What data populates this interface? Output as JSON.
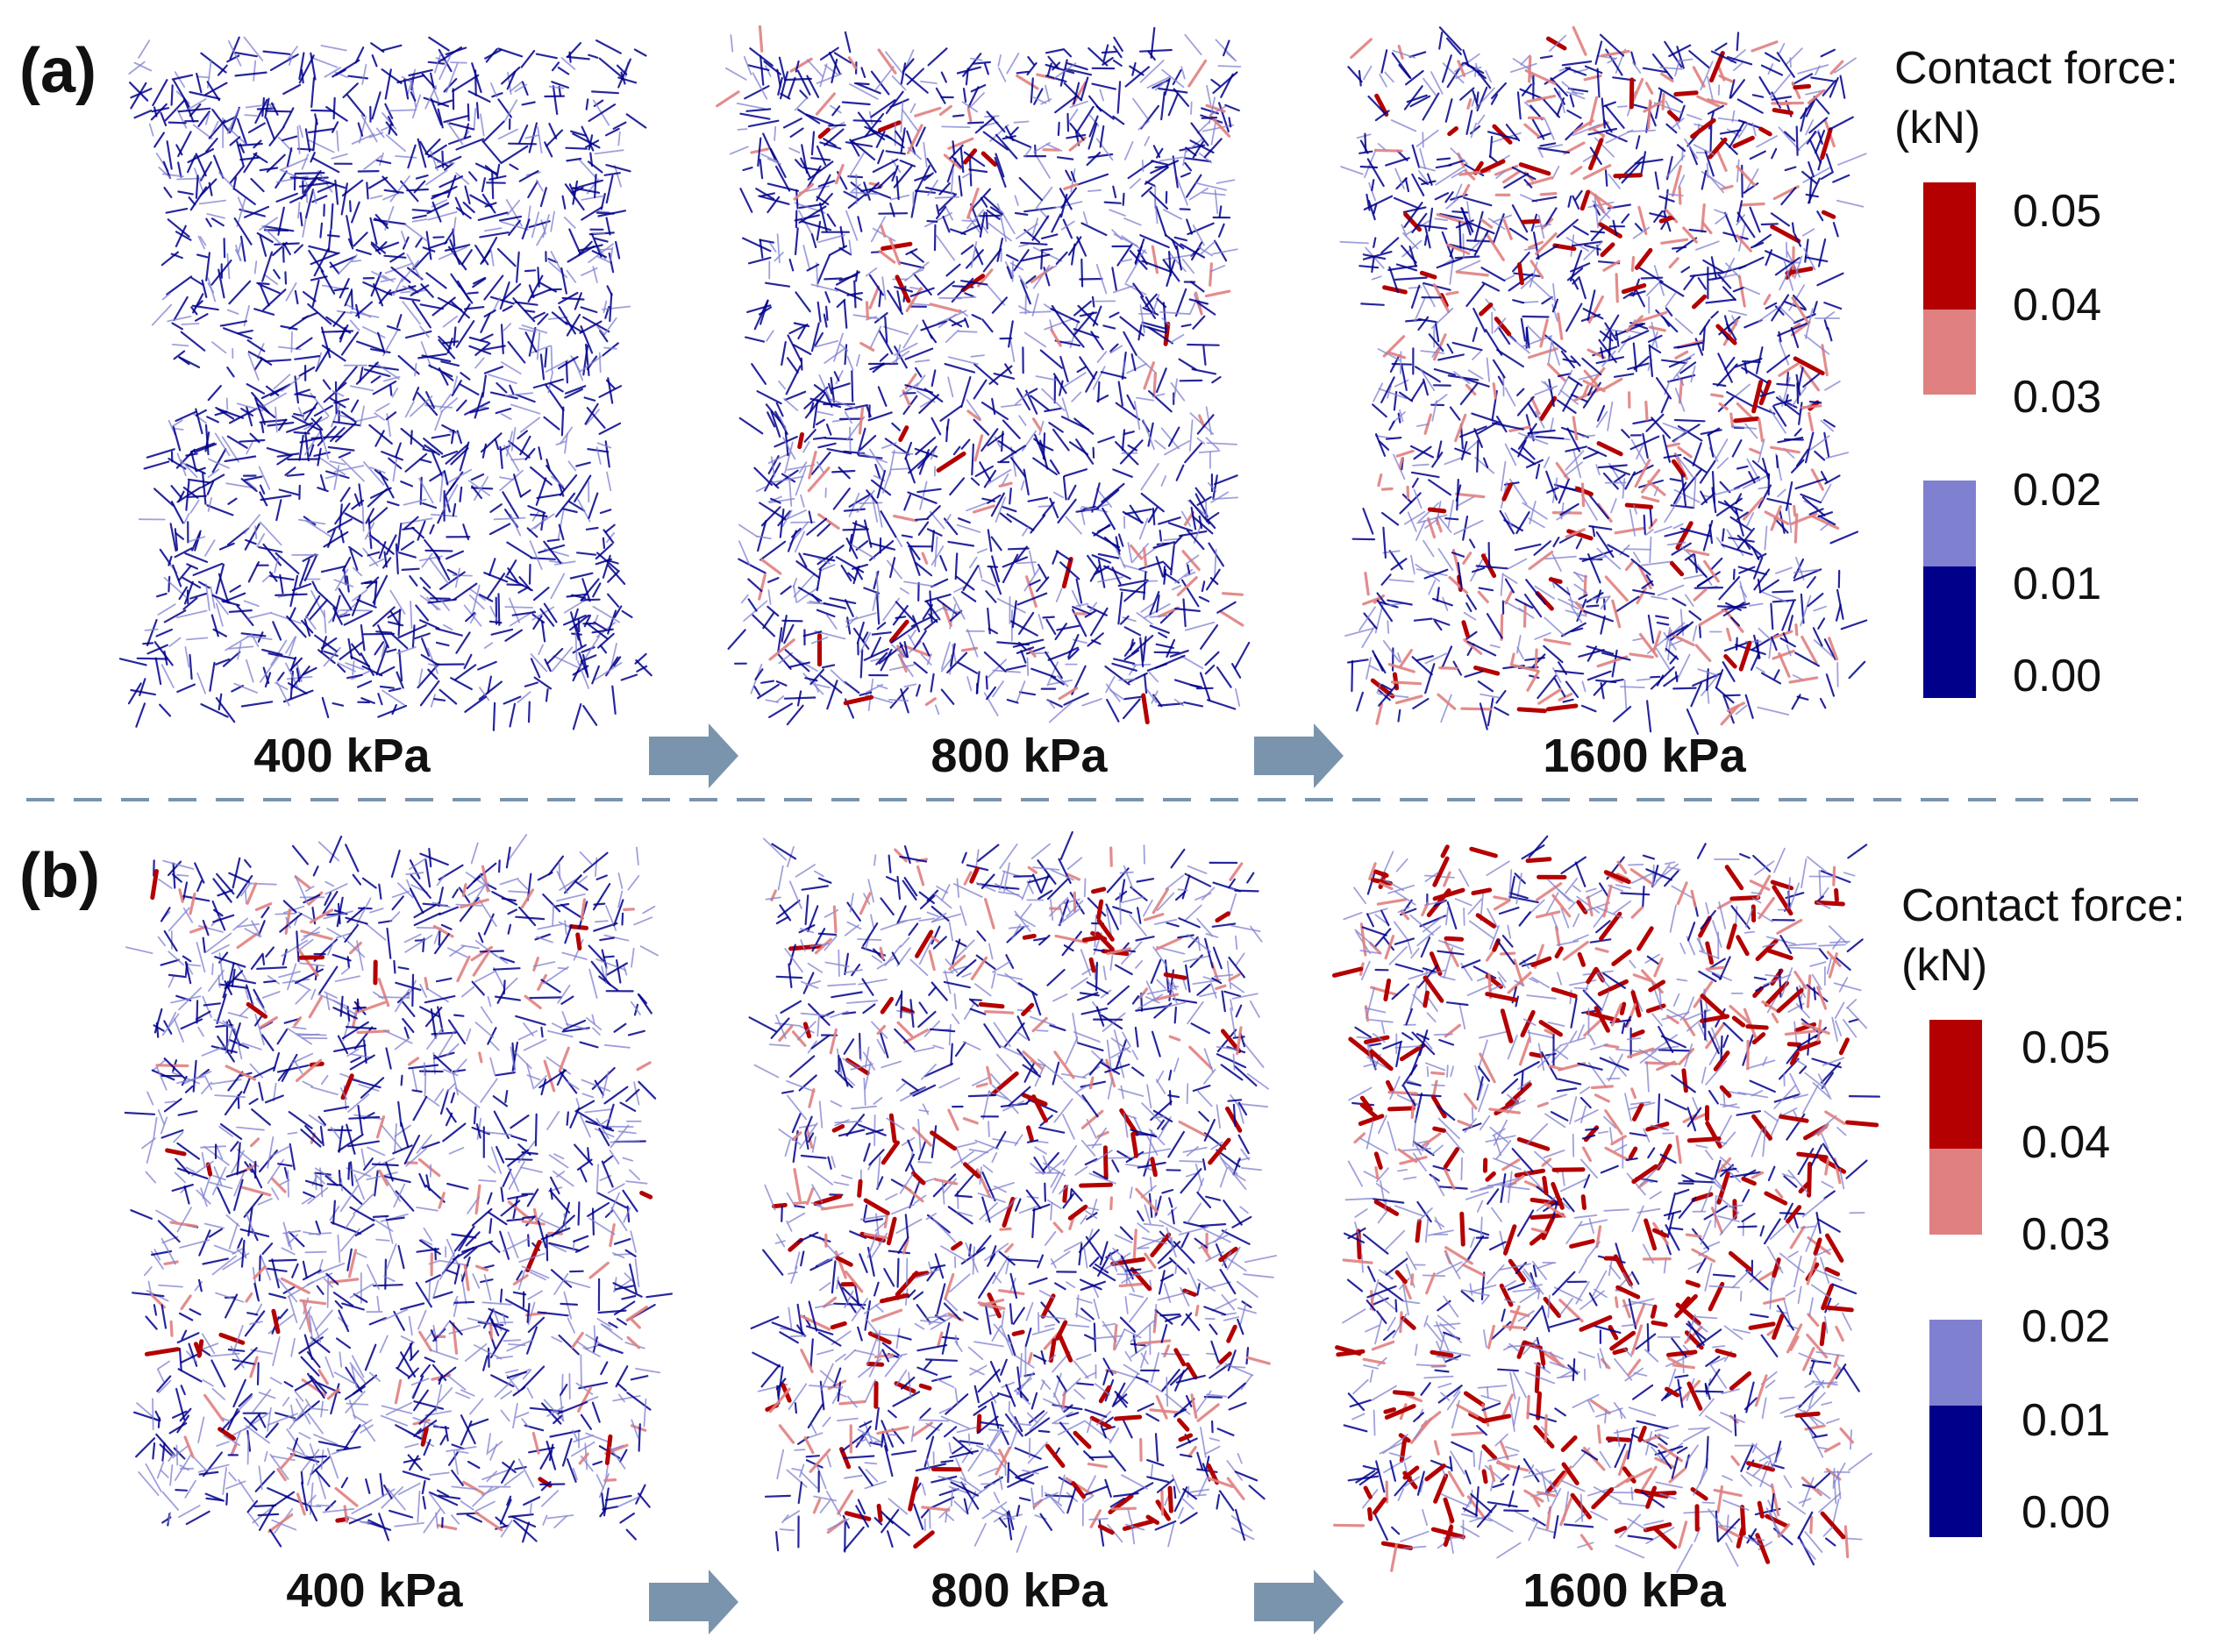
{
  "colors": {
    "dark_blue": "#00008b",
    "light_blue": "#8080d0",
    "light_red": "#e08080",
    "dark_red": "#b40000",
    "arrow": "#7b94ad",
    "divider": "#7b94ad"
  },
  "panels": [
    {
      "label": "(a)",
      "samples": [
        {
          "pressure": "400 kPa",
          "red_fraction": 0.0,
          "pink_fraction": 0.0
        },
        {
          "pressure": "800 kPa",
          "red_fraction": 0.01,
          "pink_fraction": 0.05
        },
        {
          "pressure": "1600 kPa",
          "red_fraction": 0.05,
          "pink_fraction": 0.15
        }
      ],
      "legend": {
        "title_line1": "Contact force:",
        "title_line2": "(kN)",
        "ticks": [
          "0.05",
          "0.04",
          "0.03",
          "0.02",
          "0.01",
          "0.00"
        ]
      }
    },
    {
      "label": "(b)",
      "samples": [
        {
          "pressure": "400 kPa",
          "red_fraction": 0.02,
          "pink_fraction": 0.06
        },
        {
          "pressure": "800 kPa",
          "red_fraction": 0.06,
          "pink_fraction": 0.1
        },
        {
          "pressure": "1600 kPa",
          "red_fraction": 0.14,
          "pink_fraction": 0.15
        }
      ],
      "legend": {
        "title_line1": "Contact force:",
        "title_line2": "(kN)",
        "ticks": [
          "0.05",
          "0.04",
          "0.03",
          "0.02",
          "0.01",
          "0.00"
        ]
      }
    }
  ]
}
